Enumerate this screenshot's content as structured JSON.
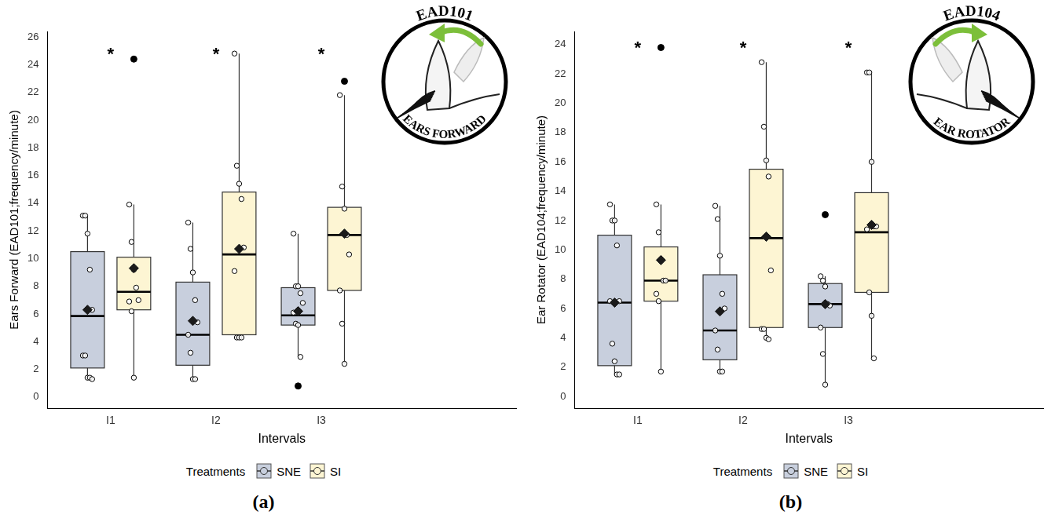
{
  "chart_data": [
    {
      "type": "boxplot",
      "panel": "(a)",
      "x_label": "Intervals",
      "y_label": "Ears Forward (EAD101;frequency/minute)",
      "categories": [
        "I1",
        "I2",
        "I3"
      ],
      "ylim": [
        -0.8,
        26.4
      ],
      "yticks": [
        0,
        2,
        4,
        6,
        8,
        10,
        12,
        14,
        16,
        18,
        20,
        22,
        24,
        26
      ],
      "grid": false,
      "legend": "bottom",
      "legend_title": "Treatments",
      "annotations": [
        {
          "text": "*",
          "category": "I1",
          "y": 25
        },
        {
          "text": "*",
          "category": "I2",
          "y": 25
        },
        {
          "text": "*",
          "category": "I3",
          "y": 25
        }
      ],
      "icon": {
        "code": "EAD101",
        "caption": "EARS FORWARD"
      },
      "series": [
        {
          "name": "SNE",
          "color": "#c8cfdd",
          "boxes": [
            {
              "whisker_low": 1.3,
              "q1": 2.1,
              "median": 5.85,
              "q3": 10.5,
              "whisker_high": 13.1,
              "mean": 6.3,
              "outliers": [],
              "points": [
                13.1,
                13.1,
                11.8,
                9.2,
                6.3,
                3.0,
                3.0,
                1.4,
                1.4,
                1.3
              ]
            },
            {
              "whisker_low": 1.3,
              "q1": 2.3,
              "median": 4.5,
              "q3": 8.3,
              "whisker_high": 12.6,
              "mean": 5.5,
              "outliers": [],
              "points": [
                12.6,
                10.7,
                9.0,
                7.0,
                5.4,
                4.5,
                3.2,
                1.3,
                1.3
              ]
            },
            {
              "whisker_low": 2.9,
              "q1": 5.2,
              "median": 5.9,
              "q3": 7.9,
              "whisker_high": 11.8,
              "mean": 6.2,
              "outliers": [
                0.8
              ],
              "points": [
                11.8,
                8.0,
                8.0,
                7.5,
                6.8,
                6.1,
                5.3,
                5.2,
                2.9
              ]
            }
          ]
        },
        {
          "name": "SI",
          "color": "#fdf5d3",
          "boxes": [
            {
              "whisker_low": 1.4,
              "q1": 6.3,
              "median": 7.6,
              "q3": 10.1,
              "whisker_high": 13.9,
              "mean": 9.3,
              "outliers": [
                24.4
              ],
              "points": [
                13.9,
                11.2,
                9.2,
                7.9,
                7.0,
                6.9,
                6.2,
                1.4
              ]
            },
            {
              "whisker_low": 4.3,
              "q1": 4.5,
              "median": 10.3,
              "q3": 14.8,
              "whisker_high": 24.8,
              "mean": 10.7,
              "outliers": [],
              "points": [
                24.8,
                16.7,
                15.4,
                14.3,
                10.8,
                9.1,
                4.3,
                4.3,
                4.3
              ]
            },
            {
              "whisker_low": 2.4,
              "q1": 7.7,
              "median": 11.7,
              "q3": 13.7,
              "whisker_high": 21.8,
              "mean": 11.8,
              "outliers": [
                22.8
              ],
              "points": [
                21.8,
                15.2,
                13.6,
                11.7,
                10.3,
                7.7,
                5.3,
                2.4
              ]
            }
          ]
        }
      ]
    },
    {
      "type": "boxplot",
      "panel": "(b)",
      "x_label": "Intervals",
      "y_label": "Ear Rotator (EAD104;frequency/minute)",
      "categories": [
        "I1",
        "I2",
        "I3"
      ],
      "ylim": [
        -0.8,
        24.9
      ],
      "yticks": [
        0,
        2,
        4,
        6,
        8,
        10,
        12,
        14,
        16,
        18,
        20,
        22,
        24
      ],
      "grid": false,
      "legend": "bottom",
      "legend_title": "Treatments",
      "annotations": [
        {
          "text": "*",
          "category": "I1",
          "y": 24
        },
        {
          "text": "*",
          "category": "I2",
          "y": 24
        },
        {
          "text": "*",
          "category": "I3",
          "y": 24
        }
      ],
      "icon": {
        "code": "EAD104",
        "caption": "EAR ROTATOR"
      },
      "series": [
        {
          "name": "SNE",
          "color": "#c8cfdd",
          "boxes": [
            {
              "whisker_low": 1.5,
              "q1": 2.1,
              "median": 6.4,
              "q3": 11.0,
              "whisker_high": 13.1,
              "mean": 6.4,
              "outliers": [],
              "points": [
                13.1,
                12.0,
                12.0,
                10.3,
                6.5,
                6.5,
                3.6,
                2.4,
                1.5,
                1.5
              ]
            },
            {
              "whisker_low": 1.7,
              "q1": 2.5,
              "median": 4.5,
              "q3": 8.3,
              "whisker_high": 13.0,
              "mean": 5.8,
              "outliers": [],
              "points": [
                13.0,
                12.1,
                9.6,
                7.0,
                6.0,
                4.5,
                3.2,
                1.7,
                1.7
              ]
            },
            {
              "whisker_low": 0.8,
              "q1": 4.7,
              "median": 6.3,
              "q3": 7.7,
              "whisker_high": 8.2,
              "mean": 6.3,
              "outliers": [
                12.4
              ],
              "points": [
                8.2,
                7.9,
                7.5,
                6.3,
                6.2,
                4.7,
                2.9,
                0.8
              ]
            }
          ]
        },
        {
          "name": "SI",
          "color": "#fdf5d3",
          "boxes": [
            {
              "whisker_low": 1.7,
              "q1": 6.5,
              "median": 7.9,
              "q3": 10.2,
              "whisker_high": 13.1,
              "mean": 9.3,
              "outliers": [
                23.8
              ],
              "points": [
                13.1,
                11.2,
                9.3,
                7.9,
                7.9,
                7.0,
                6.5,
                1.7
              ]
            },
            {
              "whisker_low": 3.9,
              "q1": 4.7,
              "median": 10.8,
              "q3": 15.5,
              "whisker_high": 22.8,
              "mean": 10.9,
              "outliers": [],
              "points": [
                22.8,
                18.4,
                16.1,
                15.0,
                8.6,
                4.6,
                4.6,
                4.0,
                3.9
              ]
            },
            {
              "whisker_low": 2.6,
              "q1": 7.1,
              "median": 11.2,
              "q3": 13.9,
              "whisker_high": 22.1,
              "mean": 11.7,
              "outliers": [],
              "points": [
                22.1,
                22.1,
                16.0,
                11.6,
                11.6,
                11.4,
                7.1,
                5.5,
                2.6
              ]
            }
          ]
        }
      ]
    }
  ]
}
